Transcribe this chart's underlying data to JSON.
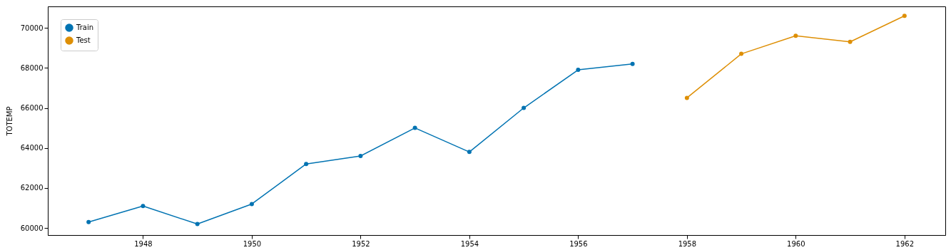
{
  "chart_data": {
    "type": "line",
    "ylabel": "TOTEMP",
    "xlim": [
      1946.25,
      1962.75
    ],
    "ylim": [
      59650,
      71070
    ],
    "xticks": [
      1948,
      1950,
      1952,
      1954,
      1956,
      1958,
      1960,
      1962
    ],
    "yticks": [
      60000,
      62000,
      64000,
      66000,
      68000,
      70000
    ],
    "marker": "circle",
    "legend": "top left",
    "grid": false,
    "series": [
      {
        "name": "Train",
        "color": "#0173b2",
        "x": [
          1947,
          1948,
          1949,
          1950,
          1951,
          1952,
          1953,
          1954,
          1955,
          1956,
          1957
        ],
        "values": [
          60300,
          61100,
          60200,
          61200,
          63200,
          63600,
          65000,
          63800,
          66000,
          67900,
          68200
        ]
      },
      {
        "name": "Test",
        "color": "#de8f05",
        "x": [
          1958,
          1959,
          1960,
          1961,
          1962
        ],
        "values": [
          66500,
          68700,
          69600,
          69300,
          70600
        ]
      }
    ]
  }
}
